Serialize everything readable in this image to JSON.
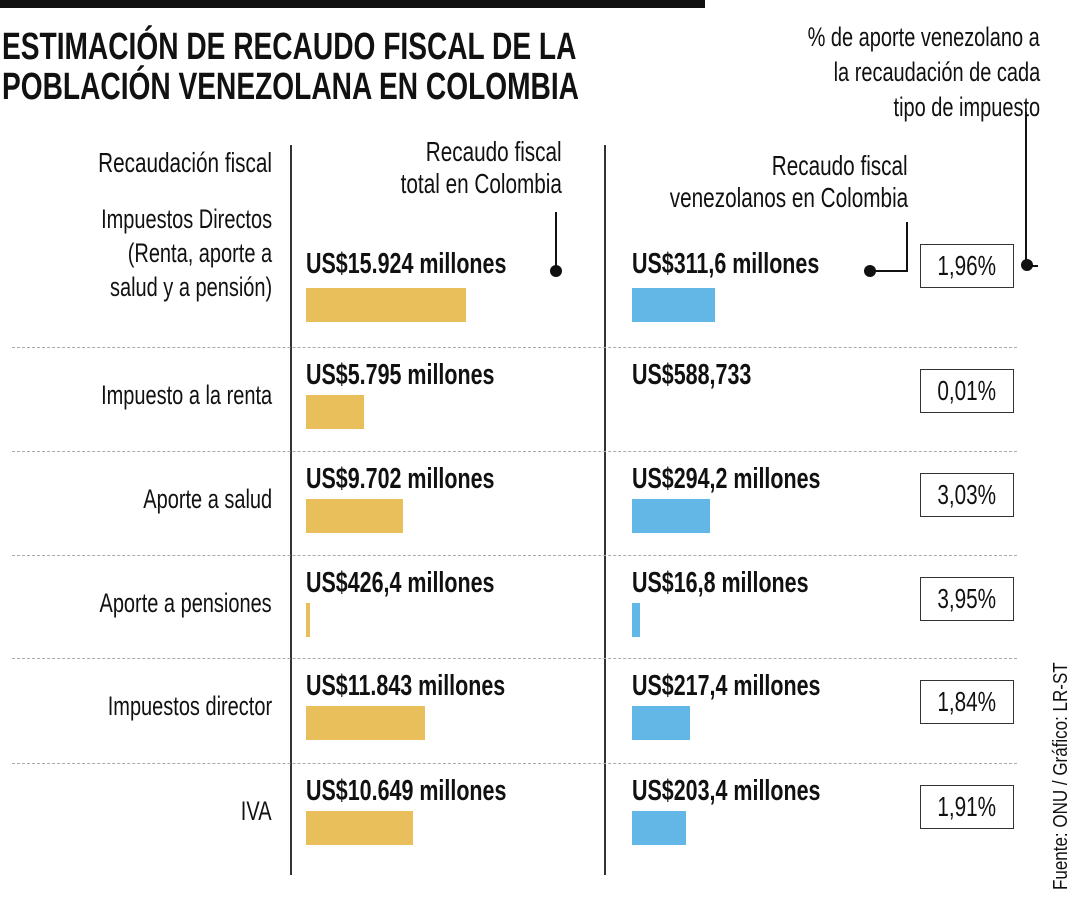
{
  "chart_data": {
    "type": "bar",
    "title": "ESTIMACIÓN DE RECAUDO FISCAL DE LA POBLACIÓN VENEZOLANA EN COLOMBIA",
    "title_lines": [
      "ESTIMACIÓN DE RECAUDO FISCAL DE LA",
      "POBLACIÓN VENEZOLANA EN COLOMBIA"
    ],
    "category_header": "Recaudación fiscal",
    "pct_note_lines": [
      "% de aporte venezolano a",
      "la recaudación de cada",
      "tipo de impuesto"
    ],
    "series": [
      {
        "name": "Recaudo fiscal total en Colombia",
        "name_lines": [
          "Recaudo fiscal",
          "total en Colombia"
        ],
        "color": "#E9BF5B",
        "unit": "US$ millones"
      },
      {
        "name": "Recaudo fiscal venezolanos en Colombia",
        "name_lines": [
          "Recaudo fiscal",
          "venezolanos en Colombia"
        ],
        "color": "#62B7E7",
        "unit": "US$ millones"
      }
    ],
    "rows": [
      {
        "category_lines": [
          "Impuestos Directos",
          "(Renta, aporte a",
          "salud y a pensión)"
        ],
        "total": 15924,
        "total_label": "US$15.924 millones",
        "venez": 311.6,
        "venez_label": "US$311,6 millones",
        "pct": "1,96%"
      },
      {
        "category_lines": [
          "Impuesto a la renta"
        ],
        "total": 5795,
        "total_label": "US$5.795 millones",
        "venez": 0.588733,
        "venez_label": "US$588,733",
        "pct": "0,01%"
      },
      {
        "category_lines": [
          "Aporte a salud"
        ],
        "total": 9702,
        "total_label": "US$9.702 millones",
        "venez": 294.2,
        "venez_label": "US$294,2 millones",
        "pct": "3,03%"
      },
      {
        "category_lines": [
          "Aporte a pensiones"
        ],
        "total": 426.4,
        "total_label": "US$426,4 millones",
        "venez": 16.8,
        "venez_label": "US$16,8 millones",
        "pct": "3,95%"
      },
      {
        "category_lines": [
          "Impuestos director"
        ],
        "total": 11843,
        "total_label": "US$11.843 millones",
        "venez": 217.4,
        "venez_label": "US$217,4 millones",
        "pct": "1,84%"
      },
      {
        "category_lines": [
          "IVA"
        ],
        "total": 10649,
        "total_label": "US$10.649 millones",
        "venez": 203.4,
        "venez_label": "US$203,4 millones",
        "pct": "1,91%"
      }
    ],
    "source": "Fuente: ONU / Gráfico: LR-ST"
  }
}
